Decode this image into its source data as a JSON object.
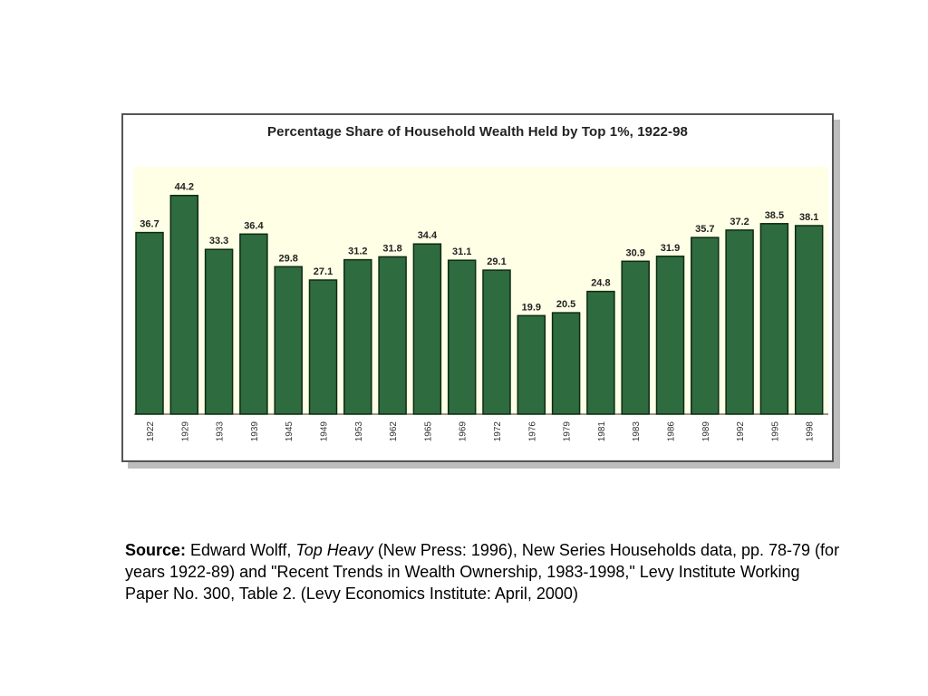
{
  "chart_data": {
    "type": "bar",
    "title": "Percentage Share of Household Wealth Held by Top 1%,  1922-98",
    "xlabel": "",
    "ylabel": "",
    "ylim": [
      0,
      50
    ],
    "grid": false,
    "legend": "none",
    "categories": [
      "1922",
      "1929",
      "1933",
      "1939",
      "1945",
      "1949",
      "1953",
      "1962",
      "1965",
      "1969",
      "1972",
      "1976",
      "1979",
      "1981",
      "1983",
      "1986",
      "1989",
      "1992",
      "1995",
      "1998"
    ],
    "values": [
      36.7,
      44.2,
      33.3,
      36.4,
      29.8,
      27.1,
      31.2,
      31.8,
      34.4,
      31.1,
      29.1,
      19.9,
      20.5,
      24.8,
      30.9,
      31.9,
      35.7,
      37.2,
      38.5,
      38.1
    ],
    "data_labels": [
      "36.7",
      "44.2",
      "33.3",
      "36.4",
      "29.8",
      "27.1",
      "31.2",
      "31.8",
      "34.4",
      "31.1",
      "29.1",
      "19.9",
      "20.5",
      "24.8",
      "30.9",
      "31.9",
      "35.7",
      "37.2",
      "38.5",
      "38.1"
    ],
    "colors": {
      "bar": "#2e6b3e",
      "bar_edge": "#0e2a14",
      "plot_background": "#ffffe6",
      "frame": "#555555",
      "shadow": "#bdbdbd"
    }
  },
  "source": {
    "label": "Source:",
    "author": " Edward Wolff, ",
    "book_title": "Top Heavy",
    "details": " (New Press: 1996), New Series Households data, pp. 78-79 (for years 1922-89) and \"Recent Trends in Wealth Ownership, 1983-1998,\" Levy Institute Working Paper No. 300, Table 2. (Levy Economics Institute: April, 2000)"
  }
}
